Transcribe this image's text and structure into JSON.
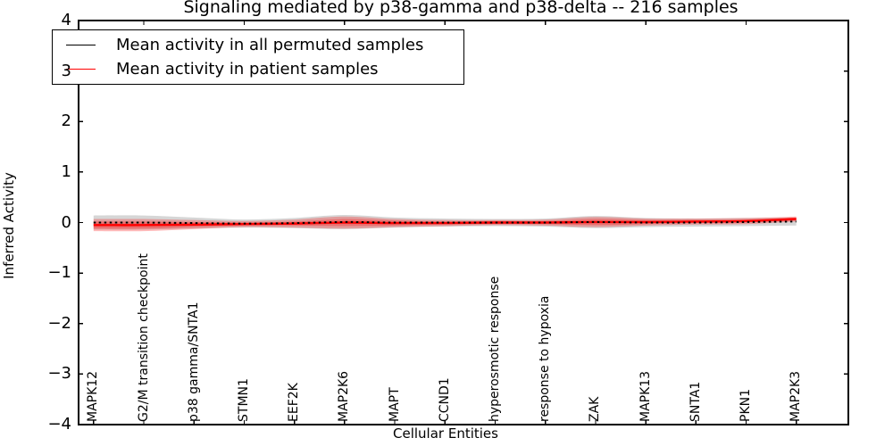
{
  "chart_data": {
    "type": "line",
    "title": "Signaling mediated by p38-gamma and p38-delta -- 216 samples",
    "xlabel": "Cellular Entities",
    "ylabel": "Inferred Activity",
    "ylim": [
      -4,
      4
    ],
    "ytick_values": [
      4,
      3,
      2,
      1,
      0,
      -1,
      -2,
      -3,
      -4
    ],
    "ytick_labels": [
      "4",
      "3",
      "2",
      "1",
      "0",
      "−1",
      "−2",
      "−3",
      "−4"
    ],
    "grid": false,
    "legend_position": "upper left",
    "categories": [
      "MAPK12",
      "G2/M transition checkpoint",
      "p38 gamma/SNTA1",
      "STMN1",
      "EEF2K",
      "MAP2K6",
      "MAPT",
      "CCND1",
      "hyperosmotic response",
      "response to hypoxia",
      "ZAK",
      "MAPK13",
      "SNTA1",
      "PKN1",
      "MAP2K3"
    ],
    "series": [
      {
        "name": "Mean activity in all permuted samples",
        "color": "#000000",
        "line_style": "dashed",
        "values": [
          0.0,
          0.0,
          -0.01,
          -0.02,
          -0.01,
          0.01,
          0.0,
          0.0,
          0.0,
          0.0,
          0.01,
          0.0,
          0.0,
          0.01,
          0.02
        ]
      },
      {
        "name": "Mean activity in patient samples",
        "color": "#ff0000",
        "line_style": "solid",
        "values": [
          -0.05,
          -0.05,
          -0.04,
          -0.03,
          -0.02,
          0.0,
          -0.01,
          -0.01,
          0.0,
          0.0,
          0.01,
          0.01,
          0.02,
          0.03,
          0.07
        ]
      }
    ],
    "bands": [
      {
        "name": "permuted samples spread",
        "color": "#999999",
        "opacity": 0.4,
        "center_series": 0,
        "halfwidths": [
          0.14,
          0.14,
          0.11,
          0.08,
          0.1,
          0.14,
          0.1,
          0.08,
          0.07,
          0.08,
          0.12,
          0.09,
          0.08,
          0.08,
          0.08
        ]
      },
      {
        "name": "patient samples spread outer",
        "color": "#ff0000",
        "opacity": 0.27,
        "center_series": 1,
        "halfwidths": [
          0.12,
          0.12,
          0.09,
          0.06,
          0.08,
          0.12,
          0.08,
          0.06,
          0.05,
          0.06,
          0.1,
          0.07,
          0.06,
          0.06,
          0.05
        ]
      },
      {
        "name": "patient samples spread inner",
        "color": "#ff0000",
        "opacity": 0.27,
        "center_series": 1,
        "halfwidths": [
          0.07,
          0.07,
          0.05,
          0.03,
          0.04,
          0.07,
          0.05,
          0.03,
          0.03,
          0.03,
          0.06,
          0.04,
          0.03,
          0.03,
          0.03
        ]
      }
    ]
  }
}
